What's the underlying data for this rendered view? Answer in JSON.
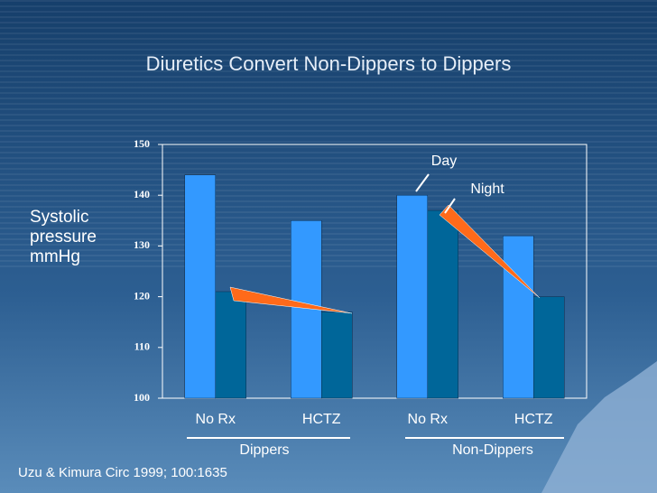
{
  "chart_data": {
    "type": "bar",
    "title": "Diuretics Convert Non-Dippers to Dippers",
    "y_label": "Systolic pressure mmHg",
    "categories": [
      "No Rx",
      "HCTZ",
      "No Rx",
      "HCTZ"
    ],
    "groups": [
      "Dippers",
      "Non-Dippers"
    ],
    "series": [
      {
        "name": "Day",
        "color": "#3399ff",
        "values": [
          144,
          135,
          140,
          132
        ]
      },
      {
        "name": "Night",
        "color": "#006699",
        "values": [
          121,
          117,
          137,
          120
        ]
      }
    ],
    "ylim": [
      100,
      150
    ],
    "yticks": [
      100,
      110,
      120,
      130,
      140,
      150
    ],
    "grid": false,
    "source": "Uzu & Kimura Circ 1999; 100:1635"
  }
}
